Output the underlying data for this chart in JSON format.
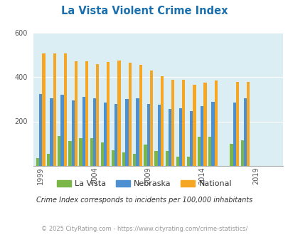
{
  "title": "La Vista Violent Crime Index",
  "title_color": "#1a6fad",
  "subtitle": "Crime Index corresponds to incidents per 100,000 inhabitants",
  "footer": "© 2025 CityRating.com - https://www.cityrating.com/crime-statistics/",
  "years": [
    1999,
    2000,
    2001,
    2002,
    2003,
    2004,
    2005,
    2006,
    2007,
    2008,
    2009,
    2010,
    2011,
    2012,
    2013,
    2014,
    2015,
    2016,
    2017,
    2018,
    2019,
    2020,
    2021
  ],
  "la_vista": [
    35,
    55,
    135,
    110,
    125,
    125,
    105,
    70,
    60,
    55,
    95,
    65,
    65,
    40,
    40,
    130,
    130,
    0,
    100,
    115,
    0,
    0,
    0
  ],
  "nebraska": [
    325,
    305,
    320,
    295,
    310,
    305,
    285,
    280,
    300,
    305,
    280,
    275,
    255,
    260,
    248,
    270,
    290,
    0,
    285,
    305,
    0,
    0,
    0
  ],
  "national": [
    508,
    508,
    507,
    472,
    472,
    460,
    469,
    474,
    467,
    457,
    430,
    405,
    388,
    388,
    367,
    374,
    384,
    0,
    380,
    380,
    0,
    0,
    0
  ],
  "la_vista_color": "#7ab648",
  "nebraska_color": "#4d90d1",
  "national_color": "#f5a623",
  "fig_bg": "#ffffff",
  "plot_bg": "#daeef3",
  "ylim": [
    0,
    600
  ],
  "yticks": [
    200,
    400,
    600
  ],
  "grid_color": "#ffffff",
  "legend_labels": [
    "La Vista",
    "Nebraska",
    "National"
  ],
  "bar_width": 0.28,
  "x_tick_years": [
    1999,
    2004,
    2009,
    2014,
    2019
  ]
}
